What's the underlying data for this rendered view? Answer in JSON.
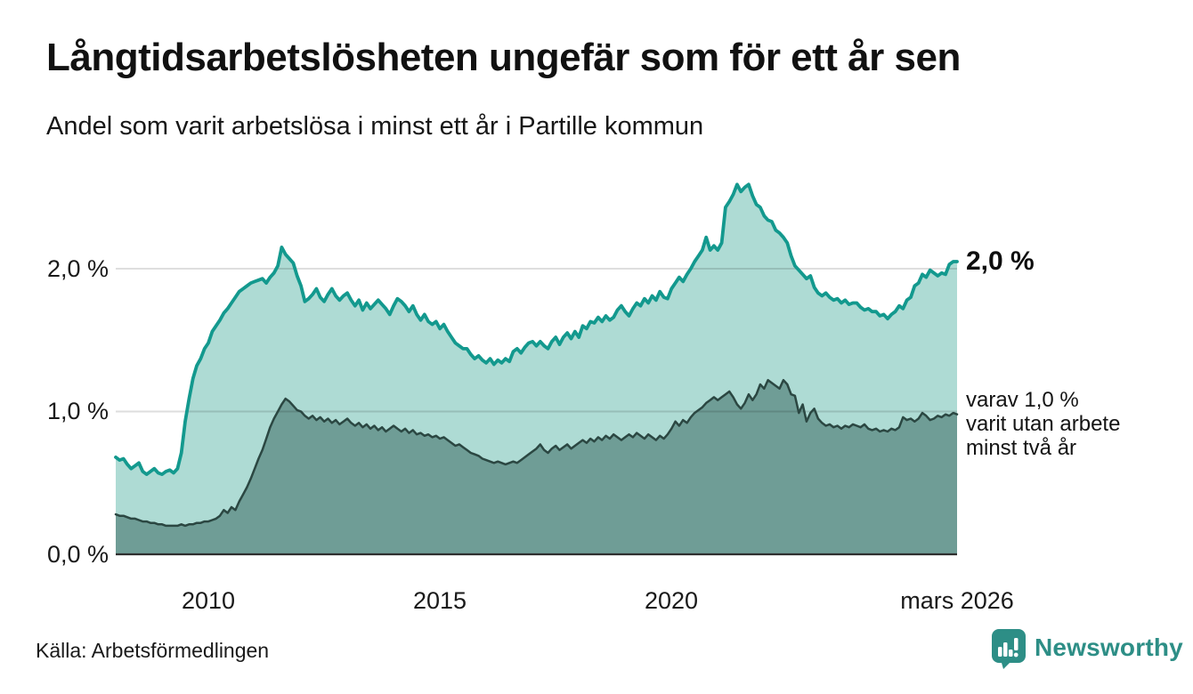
{
  "title": "Långtidsarbetslösheten ungefär som för ett år sen",
  "subtitle": "Andel som varit arbetslösa i minst ett år i Partille kommun",
  "source": "Källa: Arbetsförmedlingen",
  "branding": {
    "wordmark": "Newsworthy"
  },
  "colors": {
    "line_primary": "#13998e",
    "fill_primary": "#aedbd4",
    "line_secondary": "#2b4742",
    "fill_secondary": "#6f9d96",
    "grid": "rgba(0,0,0,0.13)",
    "axis_baseline": "#2f2f2f",
    "brand_teal": "#2d8e86",
    "text": "#111111"
  },
  "annotations": {
    "end_value": "2,0 %",
    "secondary_lines": [
      "varav 1,0 %",
      "varit utan arbete",
      "minst två år"
    ]
  },
  "chart_data": {
    "type": "area",
    "title": "Långtidsarbetslösheten ungefär som för ett år sen",
    "subtitle": "Andel som varit arbetslösa i minst ett år i Partille kommun",
    "unit": "%",
    "x_start": "2008-01",
    "x_end": "2026-03",
    "ylim": [
      0,
      2.76
    ],
    "grid": "horizontal",
    "legend_position": "right-annotations",
    "y_ticks": [
      {
        "label": "0,0 %",
        "value": 0
      },
      {
        "label": "1,0 %",
        "value": 1
      },
      {
        "label": "2,0 %",
        "value": 2
      }
    ],
    "x_ticks": [
      {
        "label": "2010",
        "month_index": 24
      },
      {
        "label": "2015",
        "month_index": 84
      },
      {
        "label": "2020",
        "month_index": 144
      },
      {
        "label": "mars 2026",
        "month_index": 218
      }
    ],
    "series": [
      {
        "name": "Andel som varit arbetslösa i minst ett år",
        "end_label": "2,0 %",
        "values": [
          0.68,
          0.66,
          0.67,
          0.63,
          0.6,
          0.62,
          0.64,
          0.58,
          0.56,
          0.58,
          0.6,
          0.57,
          0.56,
          0.58,
          0.59,
          0.57,
          0.6,
          0.71,
          0.93,
          1.09,
          1.23,
          1.32,
          1.37,
          1.44,
          1.48,
          1.56,
          1.6,
          1.64,
          1.69,
          1.72,
          1.76,
          1.8,
          1.84,
          1.86,
          1.88,
          1.9,
          1.91,
          1.92,
          1.93,
          1.9,
          1.94,
          1.97,
          2.02,
          2.15,
          2.1,
          2.07,
          2.04,
          1.95,
          1.88,
          1.77,
          1.79,
          1.82,
          1.86,
          1.8,
          1.77,
          1.82,
          1.86,
          1.81,
          1.78,
          1.81,
          1.83,
          1.78,
          1.74,
          1.78,
          1.71,
          1.76,
          1.72,
          1.75,
          1.78,
          1.75,
          1.72,
          1.68,
          1.74,
          1.79,
          1.77,
          1.74,
          1.7,
          1.74,
          1.68,
          1.64,
          1.68,
          1.63,
          1.61,
          1.63,
          1.58,
          1.61,
          1.56,
          1.52,
          1.48,
          1.46,
          1.44,
          1.44,
          1.4,
          1.37,
          1.39,
          1.36,
          1.34,
          1.37,
          1.33,
          1.36,
          1.34,
          1.37,
          1.35,
          1.42,
          1.44,
          1.41,
          1.45,
          1.48,
          1.49,
          1.46,
          1.49,
          1.46,
          1.44,
          1.49,
          1.52,
          1.47,
          1.52,
          1.55,
          1.51,
          1.56,
          1.52,
          1.6,
          1.58,
          1.63,
          1.62,
          1.66,
          1.63,
          1.67,
          1.64,
          1.66,
          1.71,
          1.74,
          1.7,
          1.67,
          1.72,
          1.76,
          1.74,
          1.79,
          1.76,
          1.81,
          1.78,
          1.84,
          1.8,
          1.79,
          1.86,
          1.9,
          1.94,
          1.91,
          1.96,
          2.0,
          2.05,
          2.09,
          2.13,
          2.22,
          2.13,
          2.16,
          2.13,
          2.18,
          2.43,
          2.47,
          2.52,
          2.59,
          2.54,
          2.57,
          2.59,
          2.51,
          2.45,
          2.43,
          2.37,
          2.34,
          2.33,
          2.27,
          2.25,
          2.22,
          2.18,
          2.09,
          2.02,
          1.99,
          1.96,
          1.93,
          1.95,
          1.87,
          1.83,
          1.81,
          1.83,
          1.8,
          1.78,
          1.79,
          1.76,
          1.78,
          1.75,
          1.76,
          1.76,
          1.73,
          1.71,
          1.72,
          1.7,
          1.7,
          1.67,
          1.68,
          1.65,
          1.68,
          1.7,
          1.74,
          1.72,
          1.78,
          1.8,
          1.88,
          1.9,
          1.96,
          1.94,
          1.99,
          1.97,
          1.95,
          1.97,
          1.96,
          2.03,
          2.05,
          2.05
        ]
      },
      {
        "name": "varav utan arbete minst två år",
        "end_label": "varav 1,0 % varit utan arbete minst två år",
        "values": [
          0.28,
          0.27,
          0.27,
          0.26,
          0.25,
          0.25,
          0.24,
          0.23,
          0.23,
          0.22,
          0.22,
          0.21,
          0.21,
          0.2,
          0.2,
          0.2,
          0.2,
          0.21,
          0.2,
          0.21,
          0.21,
          0.22,
          0.22,
          0.23,
          0.23,
          0.24,
          0.25,
          0.27,
          0.31,
          0.29,
          0.33,
          0.31,
          0.37,
          0.42,
          0.47,
          0.53,
          0.6,
          0.67,
          0.73,
          0.81,
          0.89,
          0.95,
          1.0,
          1.05,
          1.09,
          1.07,
          1.04,
          1.01,
          1.0,
          0.97,
          0.95,
          0.97,
          0.94,
          0.96,
          0.93,
          0.95,
          0.92,
          0.94,
          0.91,
          0.93,
          0.95,
          0.92,
          0.9,
          0.92,
          0.89,
          0.91,
          0.88,
          0.9,
          0.87,
          0.89,
          0.86,
          0.88,
          0.9,
          0.88,
          0.86,
          0.88,
          0.85,
          0.87,
          0.84,
          0.85,
          0.83,
          0.84,
          0.82,
          0.83,
          0.81,
          0.82,
          0.8,
          0.78,
          0.76,
          0.77,
          0.75,
          0.73,
          0.71,
          0.7,
          0.69,
          0.67,
          0.66,
          0.65,
          0.64,
          0.65,
          0.64,
          0.63,
          0.64,
          0.65,
          0.64,
          0.66,
          0.68,
          0.7,
          0.72,
          0.74,
          0.77,
          0.73,
          0.71,
          0.74,
          0.76,
          0.73,
          0.75,
          0.77,
          0.74,
          0.76,
          0.78,
          0.8,
          0.78,
          0.81,
          0.79,
          0.82,
          0.8,
          0.83,
          0.81,
          0.84,
          0.82,
          0.8,
          0.82,
          0.84,
          0.82,
          0.85,
          0.83,
          0.81,
          0.84,
          0.82,
          0.8,
          0.83,
          0.81,
          0.84,
          0.88,
          0.93,
          0.9,
          0.94,
          0.92,
          0.96,
          0.99,
          1.01,
          1.03,
          1.06,
          1.08,
          1.1,
          1.08,
          1.1,
          1.12,
          1.14,
          1.1,
          1.05,
          1.02,
          1.06,
          1.12,
          1.08,
          1.12,
          1.19,
          1.16,
          1.22,
          1.2,
          1.18,
          1.16,
          1.22,
          1.19,
          1.12,
          1.11,
          0.99,
          1.05,
          0.93,
          0.99,
          1.02,
          0.95,
          0.92,
          0.9,
          0.91,
          0.89,
          0.9,
          0.88,
          0.9,
          0.89,
          0.91,
          0.9,
          0.89,
          0.91,
          0.88,
          0.87,
          0.88,
          0.86,
          0.87,
          0.86,
          0.88,
          0.87,
          0.89,
          0.96,
          0.94,
          0.95,
          0.93,
          0.95,
          0.99,
          0.97,
          0.94,
          0.95,
          0.97,
          0.96,
          0.98,
          0.97,
          0.99,
          0.98
        ]
      }
    ]
  }
}
